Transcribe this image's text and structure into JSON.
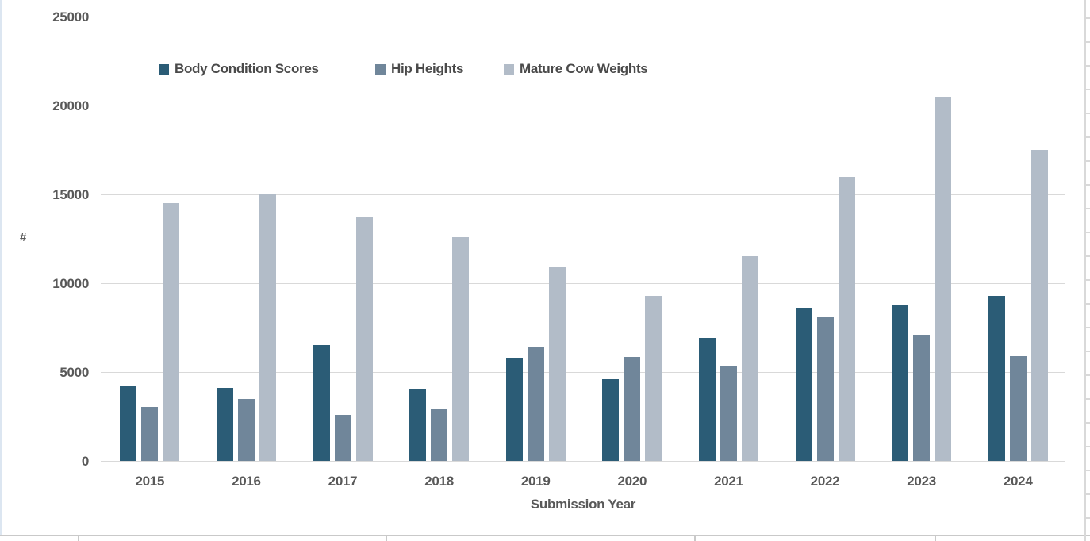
{
  "chart_data": {
    "type": "bar",
    "title": "",
    "xlabel": "Submission Year",
    "ylabel": "#",
    "ylim": [
      0,
      25000
    ],
    "ytick_step": 5000,
    "yticks": [
      0,
      5000,
      10000,
      15000,
      20000,
      25000
    ],
    "grid": true,
    "legend_position": "top",
    "categories": [
      "2015",
      "2016",
      "2017",
      "2018",
      "2019",
      "2020",
      "2021",
      "2022",
      "2023",
      "2024"
    ],
    "series": [
      {
        "name": "Body Condition Scores",
        "color": "#2B5C76",
        "values": [
          4250,
          4100,
          6500,
          4000,
          5800,
          4600,
          6900,
          8600,
          8800,
          9300
        ]
      },
      {
        "name": "Hip Heights",
        "color": "#70869A",
        "values": [
          3050,
          3500,
          2600,
          2950,
          6400,
          5850,
          5300,
          8100,
          7100,
          5900
        ]
      },
      {
        "name": "Mature Cow Weights",
        "color": "#B2BCC8",
        "values": [
          14500,
          15000,
          13750,
          12600,
          10950,
          9300,
          11500,
          16000,
          20500,
          17500
        ]
      }
    ]
  },
  "colors": {
    "gridline": "#D9D9D9",
    "axis_text": "#595959",
    "worksheet_line": "#C9CACB",
    "chart_left_border": "#DCE6F1"
  },
  "legend_left_offsets": [
    200,
    473,
    635
  ]
}
